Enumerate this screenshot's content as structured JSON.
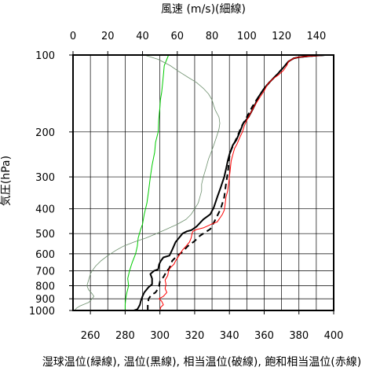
{
  "chart_data": {
    "type": "line",
    "title_top": "風速 (m/s)(細線)",
    "ylabel": "気圧(hPa)",
    "xlabel": "湿球温位(緑線), 温位(黒線), 相当温位(破線), 飽和相当温位(赤線)",
    "x_bottom": {
      "min": 250,
      "max": 400,
      "ticks": [
        "260",
        "280",
        "300",
        "320",
        "340",
        "360",
        "380",
        "400"
      ],
      "unit": "K"
    },
    "x_top": {
      "min": 0,
      "max": 150,
      "ticks": [
        "0",
        "20",
        "40",
        "60",
        "80",
        "100",
        "120",
        "140"
      ],
      "unit": "m/s"
    },
    "y": {
      "scale": "log",
      "min": 100,
      "max": 1000,
      "inverted": true,
      "ticks": [
        "100",
        "200",
        "300",
        "400",
        "500",
        "600",
        "700",
        "800",
        "900",
        "1000"
      ]
    },
    "grid": true,
    "series": [
      {
        "name": "湿球温位",
        "color": "#00cc00",
        "width": 1,
        "axis": "bottom",
        "points": [
          [
            280,
            1000
          ],
          [
            280,
            950
          ],
          [
            280.3,
            900
          ],
          [
            281,
            850
          ],
          [
            282,
            800
          ],
          [
            281.5,
            750
          ],
          [
            282.5,
            700
          ],
          [
            284,
            650
          ],
          [
            286,
            600
          ],
          [
            287,
            560
          ],
          [
            287.5,
            520
          ],
          [
            289,
            480
          ],
          [
            290,
            460
          ],
          [
            291,
            420
          ],
          [
            292.5,
            380
          ],
          [
            293.5,
            340
          ],
          [
            294.5,
            300
          ],
          [
            295.5,
            270
          ],
          [
            297,
            240
          ],
          [
            297.5,
            220
          ],
          [
            299,
            200
          ],
          [
            299.3,
            180
          ],
          [
            300,
            160
          ],
          [
            300.3,
            150
          ],
          [
            301,
            140
          ],
          [
            301.5,
            130
          ],
          [
            302,
            120
          ],
          [
            302.5,
            110
          ],
          [
            305,
            100
          ]
        ]
      },
      {
        "name": "温位",
        "color": "#000000",
        "width": 2,
        "axis": "bottom",
        "points": [
          [
            285,
            1000
          ],
          [
            287,
            990
          ],
          [
            288.5,
            950
          ],
          [
            289,
            920
          ],
          [
            290,
            880
          ],
          [
            291,
            850
          ],
          [
            293.5,
            810
          ],
          [
            295.5,
            790
          ],
          [
            295.5,
            750
          ],
          [
            294.5,
            720
          ],
          [
            296.5,
            700
          ],
          [
            299,
            690
          ],
          [
            299.5,
            660
          ],
          [
            300.5,
            640
          ],
          [
            302,
            620
          ],
          [
            305.5,
            610
          ],
          [
            307,
            580
          ],
          [
            309,
            540
          ],
          [
            313,
            500
          ],
          [
            315.5,
            490
          ],
          [
            318,
            485
          ],
          [
            321,
            470
          ],
          [
            325,
            440
          ],
          [
            329,
            420
          ],
          [
            331,
            395
          ],
          [
            333,
            360
          ],
          [
            335,
            330
          ],
          [
            337,
            300
          ],
          [
            338,
            280
          ],
          [
            339,
            260
          ],
          [
            340,
            245
          ],
          [
            342,
            225
          ],
          [
            344,
            215
          ],
          [
            346,
            200
          ],
          [
            348,
            185
          ],
          [
            351,
            175
          ],
          [
            353,
            165
          ],
          [
            355,
            155
          ],
          [
            357,
            145
          ],
          [
            360,
            135
          ],
          [
            363,
            128
          ],
          [
            366,
            122
          ],
          [
            368,
            118
          ],
          [
            371,
            112
          ],
          [
            374,
            106
          ],
          [
            377,
            103
          ],
          [
            380,
            102
          ],
          [
            386,
            101
          ],
          [
            395,
            100
          ]
        ]
      },
      {
        "name": "相当温位",
        "color": "#000000",
        "width": 2,
        "dashed": true,
        "axis": "bottom",
        "points": [
          [
            293,
            1000
          ],
          [
            293,
            950
          ],
          [
            293.5,
            900
          ],
          [
            295,
            870
          ],
          [
            297.5,
            850
          ],
          [
            299,
            820
          ],
          [
            299.5,
            800
          ],
          [
            300,
            770
          ],
          [
            302,
            740
          ],
          [
            303,
            720
          ],
          [
            303.5,
            700
          ],
          [
            305,
            690
          ],
          [
            306,
            670
          ],
          [
            307,
            640
          ],
          [
            310,
            610
          ],
          [
            313,
            590
          ],
          [
            316,
            560
          ],
          [
            320,
            535
          ],
          [
            323,
            510
          ],
          [
            326,
            495
          ],
          [
            329,
            480
          ],
          [
            332,
            440
          ],
          [
            335,
            400
          ],
          [
            337,
            360
          ],
          [
            338,
            320
          ],
          [
            339,
            290
          ],
          [
            339.5,
            270
          ],
          [
            340,
            250
          ],
          [
            341,
            235
          ],
          [
            343,
            220
          ],
          [
            345,
            205
          ],
          [
            347,
            190
          ],
          [
            349,
            180
          ],
          [
            351,
            170
          ],
          [
            353,
            160
          ],
          [
            355,
            152
          ],
          [
            357,
            145
          ],
          [
            360,
            135
          ],
          [
            363,
            128
          ],
          [
            366,
            122
          ],
          [
            368,
            118
          ],
          [
            371,
            112
          ],
          [
            374,
            106
          ],
          [
            377,
            103
          ],
          [
            380,
            102
          ],
          [
            386,
            101
          ],
          [
            395,
            100
          ]
        ]
      },
      {
        "name": "飽和相当温位",
        "color": "#ff0000",
        "width": 1,
        "axis": "bottom",
        "points": [
          [
            300,
            1000
          ],
          [
            300.5,
            970
          ],
          [
            302,
            950
          ],
          [
            301,
            920
          ],
          [
            299.5,
            900
          ],
          [
            302,
            880
          ],
          [
            304,
            850
          ],
          [
            303,
            820
          ],
          [
            303.5,
            790
          ],
          [
            303,
            760
          ],
          [
            304.5,
            730
          ],
          [
            305,
            700
          ],
          [
            306,
            680
          ],
          [
            308,
            660
          ],
          [
            309,
            640
          ],
          [
            311,
            610
          ],
          [
            313,
            580
          ],
          [
            315,
            560
          ],
          [
            317,
            540
          ],
          [
            318,
            520
          ],
          [
            318.5,
            500
          ],
          [
            319,
            490
          ],
          [
            321,
            482
          ],
          [
            325,
            475
          ],
          [
            328,
            465
          ],
          [
            330,
            458
          ],
          [
            333,
            450
          ],
          [
            335,
            430
          ],
          [
            336,
            420
          ],
          [
            337,
            405
          ],
          [
            337.5,
            385
          ],
          [
            338,
            360
          ],
          [
            339,
            340
          ],
          [
            339.5,
            320
          ],
          [
            340,
            300
          ],
          [
            340.5,
            280
          ],
          [
            341,
            260
          ],
          [
            342,
            245
          ],
          [
            343,
            232
          ],
          [
            344.5,
            222
          ],
          [
            346,
            210
          ],
          [
            347.5,
            200
          ],
          [
            348.5,
            190
          ],
          [
            350,
            180
          ],
          [
            352,
            170
          ],
          [
            354,
            160
          ],
          [
            356,
            152
          ],
          [
            358,
            145
          ],
          [
            360,
            138
          ],
          [
            362,
            130
          ],
          [
            365,
            124
          ],
          [
            368,
            120
          ],
          [
            371,
            115
          ],
          [
            373,
            110
          ],
          [
            374,
            106
          ],
          [
            377,
            103
          ],
          [
            380,
            102
          ],
          [
            386,
            101
          ],
          [
            398,
            100
          ]
        ]
      },
      {
        "name": "風速",
        "color": "#6d8f6d",
        "width": 0.8,
        "axis": "top",
        "points": [
          [
            1,
            1000
          ],
          [
            2,
            980
          ],
          [
            4,
            960
          ],
          [
            9,
            930
          ],
          [
            11,
            900
          ],
          [
            12,
            880
          ],
          [
            11,
            860
          ],
          [
            9,
            830
          ],
          [
            8,
            800
          ],
          [
            9,
            760
          ],
          [
            10,
            720
          ],
          [
            11,
            700
          ],
          [
            13,
            670
          ],
          [
            16,
            640
          ],
          [
            20,
            610
          ],
          [
            25,
            580
          ],
          [
            29,
            560
          ],
          [
            35,
            540
          ],
          [
            42,
            520
          ],
          [
            48,
            500
          ],
          [
            54,
            480
          ],
          [
            60,
            460
          ],
          [
            65,
            440
          ],
          [
            68,
            420
          ],
          [
            70,
            400
          ],
          [
            72,
            380
          ],
          [
            73,
            360
          ],
          [
            74,
            340
          ],
          [
            74,
            320
          ],
          [
            75,
            300
          ],
          [
            76,
            285
          ],
          [
            77,
            270
          ],
          [
            78,
            255
          ],
          [
            79,
            245
          ],
          [
            80,
            235
          ],
          [
            81,
            225
          ],
          [
            82,
            215
          ],
          [
            83,
            205
          ],
          [
            84,
            195
          ],
          [
            84.5,
            185
          ],
          [
            84,
            175
          ],
          [
            82,
            165
          ],
          [
            81,
            158
          ],
          [
            80,
            150
          ],
          [
            78,
            142
          ],
          [
            75,
            135
          ],
          [
            71,
            128
          ],
          [
            66,
            122
          ],
          [
            60,
            115
          ],
          [
            56,
            110
          ],
          [
            49,
            104
          ],
          [
            45,
            102
          ],
          [
            41,
            100
          ]
        ]
      }
    ]
  }
}
